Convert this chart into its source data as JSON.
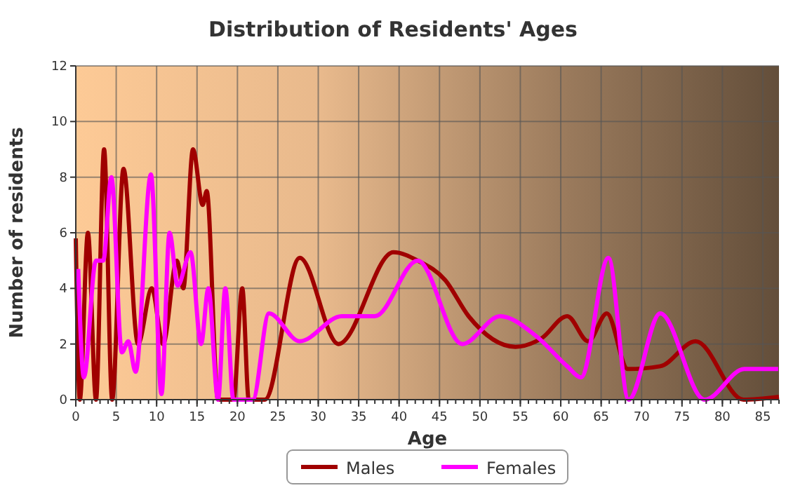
{
  "chart_data": {
    "type": "line",
    "title": "Distribution of Residents' Ages",
    "xlabel": "Age",
    "ylabel": "Number of residents",
    "xlim": [
      0,
      87
    ],
    "xticks": [
      0,
      5,
      10,
      15,
      20,
      25,
      30,
      35,
      40,
      45,
      50,
      55,
      60,
      65,
      70,
      75,
      80,
      85
    ],
    "ylim": [
      0,
      12
    ],
    "yticks": [
      0,
      2,
      4,
      6,
      8,
      10,
      12
    ],
    "grid": true,
    "legend": "bottom",
    "marker": "none",
    "line_style": "solid",
    "series": [
      {
        "name": "Males",
        "color": "#a00000",
        "x": [
          0,
          0.5,
          1.5,
          2.5,
          3.5,
          4.5,
          5.9,
          7.7,
          9.4,
          10.8,
          12.5,
          13.3,
          14.5,
          15.7,
          16.2,
          17.6,
          19.5,
          20.6,
          21.4,
          23.4,
          27.7,
          32.5,
          39.3,
          42.3,
          45.7,
          48.6,
          54.4,
          57.6,
          60.8,
          63.4,
          65.7,
          68.3,
          72.3,
          76.7,
          82.6,
          87
        ],
        "values": [
          5.8,
          0,
          6,
          0,
          9,
          0,
          8.3,
          2,
          4,
          2,
          5,
          4,
          9,
          7,
          7.5,
          0,
          0,
          4,
          0,
          0,
          5.1,
          2,
          5.3,
          5,
          4.3,
          3,
          1.9,
          2.2,
          3,
          2.1,
          3.1,
          1.1,
          1.2,
          2.1,
          0,
          0.1
        ]
      },
      {
        "name": "Females",
        "color": "#ff00ff",
        "x": [
          0.3,
          1,
          2.5,
          3.4,
          4.4,
          5.7,
          6.5,
          7.4,
          9.3,
          10.6,
          11.6,
          12.6,
          14.2,
          15.5,
          16.4,
          17.6,
          18.5,
          19.5,
          21.9,
          23.9,
          27.7,
          32.9,
          37,
          42.3,
          47.8,
          52.5,
          56.9,
          60.8,
          62.5,
          65.9,
          68.4,
          72.3,
          77.8,
          82.7,
          86.9
        ],
        "values": [
          4.7,
          0.8,
          5,
          5,
          8,
          1.7,
          2.1,
          1,
          8.1,
          0.2,
          6,
          4.1,
          5.3,
          2,
          4,
          0,
          4,
          0,
          0,
          3.1,
          2.1,
          3,
          3,
          5,
          2,
          3,
          2.3,
          1.2,
          0.8,
          5.1,
          0,
          3.1,
          0,
          1.1,
          1.1
        ]
      }
    ]
  }
}
